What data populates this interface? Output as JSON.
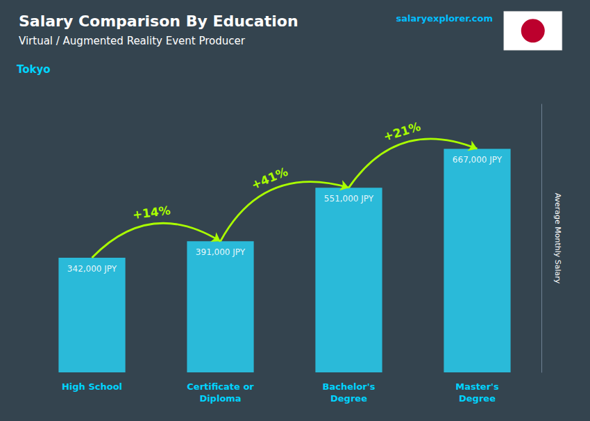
{
  "chart_data": {
    "type": "bar",
    "title": "Salary Comparison By Education",
    "subtitle": "Virtual / Augmented Reality Event Producer",
    "location": "Tokyo",
    "brand": "salaryexplorer.com",
    "ylabel": "Average Monthly Salary",
    "categories": [
      "High School",
      "Certificate or\nDiploma",
      "Bachelor's\nDegree",
      "Master's\nDegree"
    ],
    "values": [
      342000,
      391000,
      551000,
      667000
    ],
    "value_labels": [
      "342,000 JPY",
      "391,000 JPY",
      "551,000 JPY",
      "667,000 JPY"
    ],
    "data_labels": true,
    "color": "#29c8e8",
    "annotations": [
      {
        "text": "+14%",
        "from": "High School",
        "to": "Certificate or\nDiploma",
        "color": "#aaff00"
      },
      {
        "text": "+41%",
        "from": "Certificate or\nDiploma",
        "to": "Bachelor's\nDegree",
        "color": "#aaff00"
      },
      {
        "text": "+21%",
        "from": "Bachelor's\nDegree",
        "to": "Master's\nDegree",
        "color": "#aaff00"
      }
    ],
    "ylim": [
      0,
      800000
    ],
    "grid": false,
    "legend": false,
    "tick_labels": "x"
  }
}
